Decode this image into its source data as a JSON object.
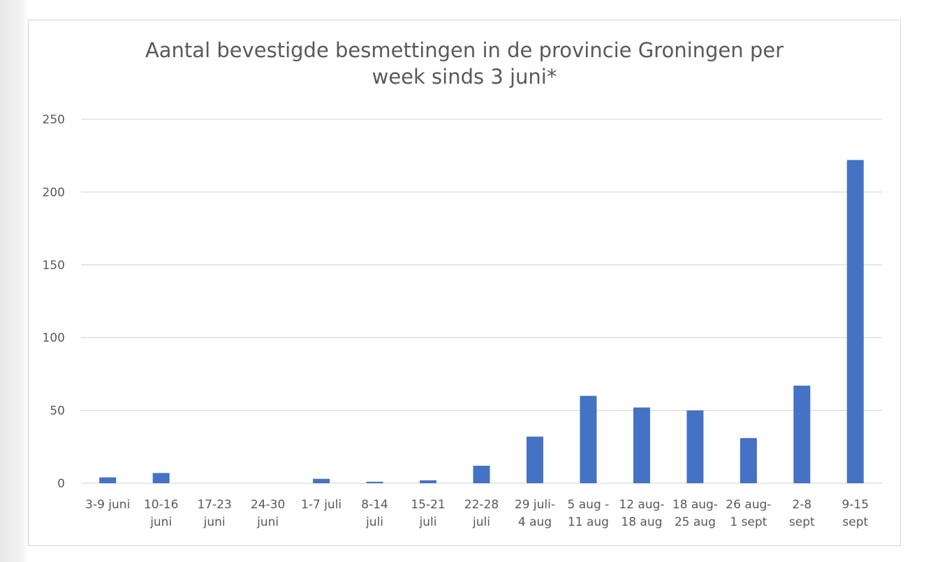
{
  "chart_data": {
    "type": "bar",
    "title_lines": [
      "Aantal bevestigde besmettingen in de provincie Groningen per",
      "week sinds 3 juni*"
    ],
    "categories": [
      [
        "3-9 juni"
      ],
      [
        "10-16",
        "juni"
      ],
      [
        "17-23",
        "juni"
      ],
      [
        "24-30",
        "juni"
      ],
      [
        "1-7 juli"
      ],
      [
        "8-14",
        "juli"
      ],
      [
        "15-21",
        "juli"
      ],
      [
        "22-28",
        "juli"
      ],
      [
        "29 juli-",
        "4 aug"
      ],
      [
        "5 aug -",
        "11 aug"
      ],
      [
        "12 aug-",
        "18 aug"
      ],
      [
        "18 aug-",
        "25 aug"
      ],
      [
        "26 aug-",
        "1 sept"
      ],
      [
        "2-8",
        "sept"
      ],
      [
        "9-15",
        "sept"
      ]
    ],
    "values": [
      4,
      7,
      0,
      0,
      3,
      1,
      2,
      12,
      32,
      60,
      52,
      50,
      31,
      67,
      222
    ],
    "ylim": [
      0,
      250
    ],
    "yticks": [
      0,
      50,
      100,
      150,
      200,
      250
    ],
    "grid": true,
    "legend": "none",
    "colors": {
      "bar": "#4472c4",
      "grid": "#d9d9d9",
      "text": "#595959"
    }
  }
}
